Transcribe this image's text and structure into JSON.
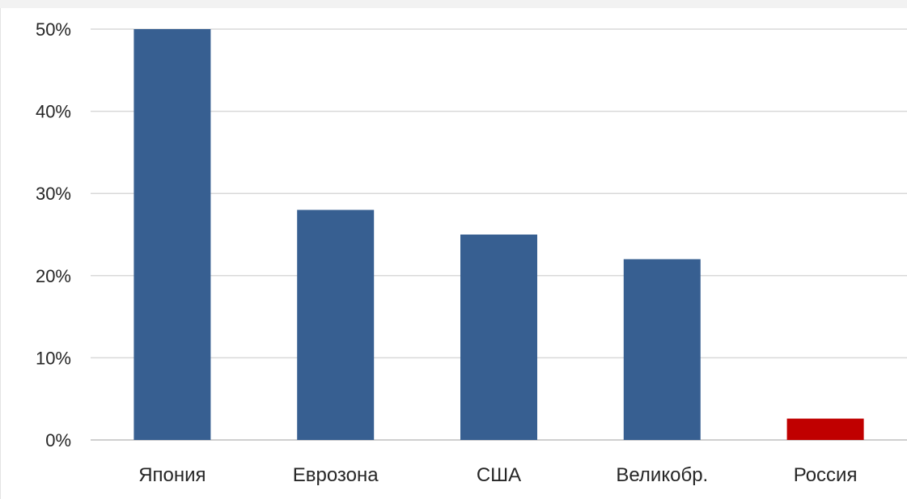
{
  "chart_data": {
    "type": "bar",
    "title": "",
    "xlabel": "",
    "ylabel": "",
    "categories": [
      "Япония",
      "Еврозона",
      "США",
      "Великобр.",
      "Россия"
    ],
    "values": [
      50,
      28,
      25,
      22,
      2.6
    ],
    "ylim": [
      0,
      50
    ],
    "yticks": [
      0,
      10,
      20,
      30,
      40,
      50
    ],
    "ytick_labels": [
      "0%",
      "10%",
      "20%",
      "30%",
      "40%",
      "50%"
    ],
    "grid": true,
    "legend": "none",
    "colors": [
      "#375f91",
      "#375f91",
      "#375f91",
      "#375f91",
      "#c00000"
    ]
  }
}
